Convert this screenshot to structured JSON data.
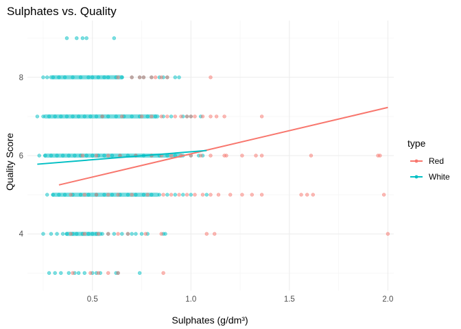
{
  "chart_data": {
    "type": "scatter",
    "title": "Sulphates vs. Quality",
    "xlabel": "Sulphates (g/dm³)",
    "ylabel": "Quality Score",
    "xlim": [
      0.17,
      2.03
    ],
    "ylim": [
      2.55,
      9.45
    ],
    "x_ticks": [
      0.5,
      1.0,
      1.5,
      2.0
    ],
    "x_tick_labels": [
      "0.5",
      "1.0",
      "1.5",
      "2.0"
    ],
    "y_ticks": [
      4,
      6,
      8
    ],
    "y_tick_labels": [
      "4",
      "6",
      "8"
    ],
    "grid": true,
    "legend": {
      "title": "type",
      "placement": "right"
    },
    "series": [
      {
        "name": "Red",
        "color": "#F8766D",
        "points": [
          {
            "quality": 3,
            "x": [
              0.4,
              0.49,
              0.53,
              0.58,
              0.63,
              0.86
            ]
          },
          {
            "quality": 4,
            "x": [
              0.39,
              0.46,
              0.53,
              0.58,
              0.63,
              0.68,
              0.77,
              0.85,
              1.08,
              1.12,
              2.0
            ]
          },
          {
            "quality": 5,
            "x": [
              0.39,
              0.46,
              0.52,
              0.58,
              0.63,
              0.7,
              0.78,
              0.86,
              0.9,
              0.94,
              0.98,
              1.02,
              1.06,
              1.1,
              1.14,
              1.2,
              1.26,
              1.31,
              1.36,
              1.56,
              1.59,
              1.62,
              1.98
            ]
          },
          {
            "quality": 6,
            "x": [
              0.45,
              0.52,
              0.58,
              0.64,
              0.72,
              0.8,
              0.85,
              0.9,
              0.95,
              1.0,
              1.05,
              1.1,
              1.17,
              1.18,
              1.26,
              1.33,
              1.36,
              1.61,
              1.95,
              1.96
            ]
          },
          {
            "quality": 7,
            "x": [
              0.55,
              0.65,
              0.75,
              0.8,
              0.85,
              0.88,
              0.92,
              0.95,
              0.98,
              1.0,
              1.02,
              1.06,
              1.1,
              1.13,
              1.17,
              1.36
            ]
          },
          {
            "quality": 8,
            "x": [
              0.63,
              0.7,
              0.74,
              0.76,
              0.8,
              0.82,
              0.85,
              0.88,
              1.1
            ]
          }
        ],
        "trend": {
          "x1": 0.33,
          "y1": 5.25,
          "x2": 2.0,
          "y2": 7.23
        }
      },
      {
        "name": "White",
        "color": "#00BFC4",
        "points": [
          {
            "quality": 3,
            "x": [
              0.28,
              0.31,
              0.34,
              0.38,
              0.41,
              0.43,
              0.46,
              0.5,
              0.52,
              0.54,
              0.62,
              0.63,
              0.74
            ]
          },
          {
            "quality": 4,
            "x": [
              0.25,
              0.29,
              0.32,
              0.35,
              0.37,
              0.4,
              0.42,
              0.45,
              0.48,
              0.5,
              0.52,
              0.55,
              0.58,
              0.61,
              0.65,
              0.68,
              0.7,
              0.72,
              0.75,
              0.78,
              0.86,
              0.87
            ]
          },
          {
            "quality": 5,
            "x": [
              0.27,
              0.3,
              0.33,
              0.36,
              0.4,
              0.44,
              0.48,
              0.52,
              0.56,
              0.6,
              0.64,
              0.68,
              0.72,
              0.76,
              0.8,
              0.84,
              0.88,
              0.92,
              0.96,
              1.0,
              1.08
            ]
          },
          {
            "quality": 6,
            "x": [
              0.23,
              0.26,
              0.29,
              0.32,
              0.35,
              0.38,
              0.41,
              0.44,
              0.47,
              0.5,
              0.53,
              0.56,
              0.6,
              0.64,
              0.68,
              0.72,
              0.76,
              0.8,
              0.84,
              0.88,
              0.92,
              0.96,
              1.0,
              1.04,
              1.06
            ]
          },
          {
            "quality": 7,
            "x": [
              0.22,
              0.25,
              0.28,
              0.31,
              0.34,
              0.37,
              0.4,
              0.43,
              0.46,
              0.49,
              0.52,
              0.55,
              0.58,
              0.62,
              0.66,
              0.7,
              0.74,
              0.78,
              0.82,
              0.86,
              0.9,
              0.96,
              0.98,
              1.0,
              1.05
            ]
          },
          {
            "quality": 8,
            "x": [
              0.25,
              0.27,
              0.3,
              0.33,
              0.36,
              0.4,
              0.44,
              0.48,
              0.5,
              0.53,
              0.56,
              0.58,
              0.62,
              0.65,
              0.7,
              0.74,
              0.76,
              0.8,
              0.84,
              0.86,
              0.88,
              0.92,
              0.94
            ]
          },
          {
            "quality": 9,
            "x": [
              0.37,
              0.42,
              0.45,
              0.47,
              0.61
            ]
          }
        ],
        "trend": {
          "x1": 0.22,
          "y1": 5.78,
          "x2": 1.08,
          "y2": 6.13
        }
      }
    ]
  }
}
